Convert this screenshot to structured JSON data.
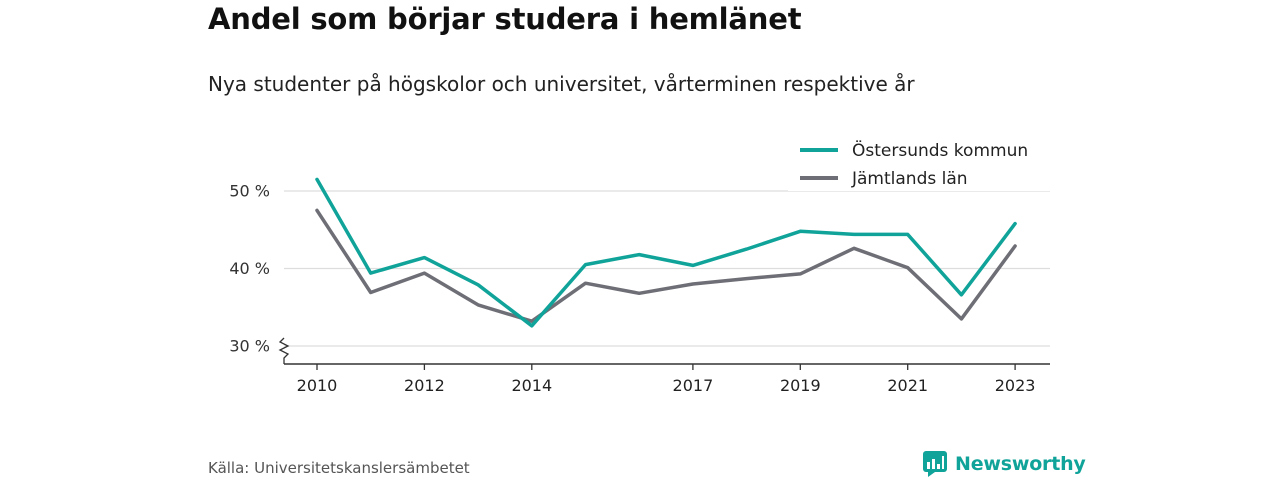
{
  "title": "Andel som börjar studera i hemlänet",
  "subtitle": "Nya studenter på högskolor och universitet, vårterminen respektive år",
  "source": "Källa: Universitetskanslersämbetet",
  "brand": "Newsworthy",
  "colors": {
    "accent": "#10a39a",
    "secondary": "#6e6e76",
    "grid": "#dddddd"
  },
  "chart_data": {
    "type": "line",
    "title": "Andel som börjar studera i hemlänet",
    "subtitle": "Nya studenter på högskolor och universitet, vårterminen respektive år",
    "xlabel": "",
    "ylabel": "",
    "x": [
      2010,
      2011,
      2012,
      2013,
      2014,
      2015,
      2016,
      2017,
      2018,
      2019,
      2020,
      2021,
      2022,
      2023
    ],
    "x_ticks": [
      2010,
      2012,
      2014,
      2017,
      2019,
      2021,
      2023
    ],
    "y_ticks": [
      {
        "value": 30,
        "label": "30 %"
      },
      {
        "value": 40,
        "label": "40 %"
      },
      {
        "value": 50,
        "label": "50 %"
      }
    ],
    "ylim": [
      27.5,
      55
    ],
    "axis_break": true,
    "grid": "horizontal",
    "legend_position": "top-right",
    "series": [
      {
        "name": "Östersunds kommun",
        "color": "#10a39a",
        "values": [
          51.5,
          39.4,
          41.4,
          37.9,
          32.6,
          40.5,
          41.8,
          40.4,
          42.5,
          44.8,
          44.4,
          44.4,
          36.6,
          45.8
        ]
      },
      {
        "name": "Jämtlands län",
        "color": "#6e6e76",
        "values": [
          47.5,
          36.9,
          39.4,
          35.3,
          33.2,
          38.1,
          36.8,
          38.0,
          38.7,
          39.3,
          42.6,
          40.1,
          33.5,
          42.9
        ]
      }
    ]
  }
}
